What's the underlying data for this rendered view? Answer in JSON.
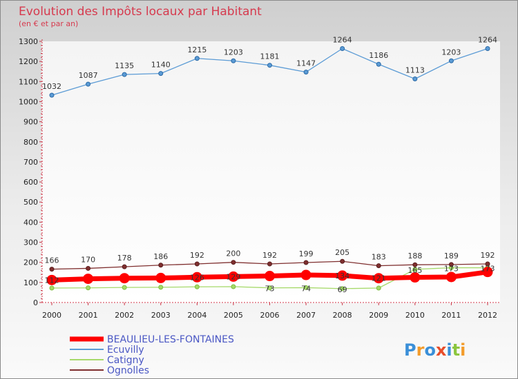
{
  "chart_data": {
    "type": "line",
    "title": "Evolution des Impôts locaux par Habitant",
    "subtitle": "(en € et par an)",
    "xlabel": "",
    "ylabel": "",
    "categories": [
      "2000",
      "2001",
      "2002",
      "2003",
      "2004",
      "2005",
      "2006",
      "2007",
      "2008",
      "2009",
      "2010",
      "2011",
      "2012"
    ],
    "ylim": [
      0,
      1300
    ],
    "yticks": [
      0,
      100,
      200,
      300,
      400,
      500,
      600,
      700,
      800,
      900,
      1000,
      1100,
      1200,
      1300
    ],
    "grid": false,
    "legend_position": "bottom-left",
    "series": [
      {
        "name": "BEAULIEU-LES-FONTAINES",
        "color": "#ff0000",
        "values": [
          112,
          118,
          121,
          122,
          126,
          129,
          132,
          137,
          134,
          121,
          125,
          127,
          152
        ],
        "labels": [
          "112",
          "",
          "",
          "",
          "126",
          "129",
          "",
          "",
          "134",
          "121",
          "",
          "",
          ""
        ]
      },
      {
        "name": "Ecuvilly",
        "color": "#5b9bd5",
        "values": [
          1032,
          1087,
          1135,
          1140,
          1215,
          1203,
          1181,
          1147,
          1264,
          1186,
          1113,
          1203,
          1264
        ],
        "labels": [
          "1032",
          "1087",
          "1135",
          "1140",
          "1215",
          "1203",
          "1181",
          "1147",
          "1264",
          "1186",
          "1113",
          "1203",
          "1264"
        ]
      },
      {
        "name": "Catigny",
        "color": "#a6d96a",
        "values": [
          72,
          73,
          75,
          76,
          78,
          79,
          73,
          74,
          69,
          72,
          165,
          173,
          173
        ],
        "labels": [
          "",
          "",
          "",
          "",
          "",
          "",
          "73",
          "74",
          "69",
          "",
          "165",
          "173",
          "173"
        ]
      },
      {
        "name": "Ognolles",
        "color": "#7f2f2f",
        "values": [
          166,
          170,
          178,
          186,
          192,
          200,
          192,
          199,
          205,
          183,
          188,
          189,
          192
        ],
        "labels": [
          "166",
          "170",
          "178",
          "186",
          "192",
          "200",
          "192",
          "199",
          "205",
          "183",
          "188",
          "189",
          "192"
        ]
      }
    ]
  },
  "branding": {
    "logo_text": "Proxiti"
  }
}
